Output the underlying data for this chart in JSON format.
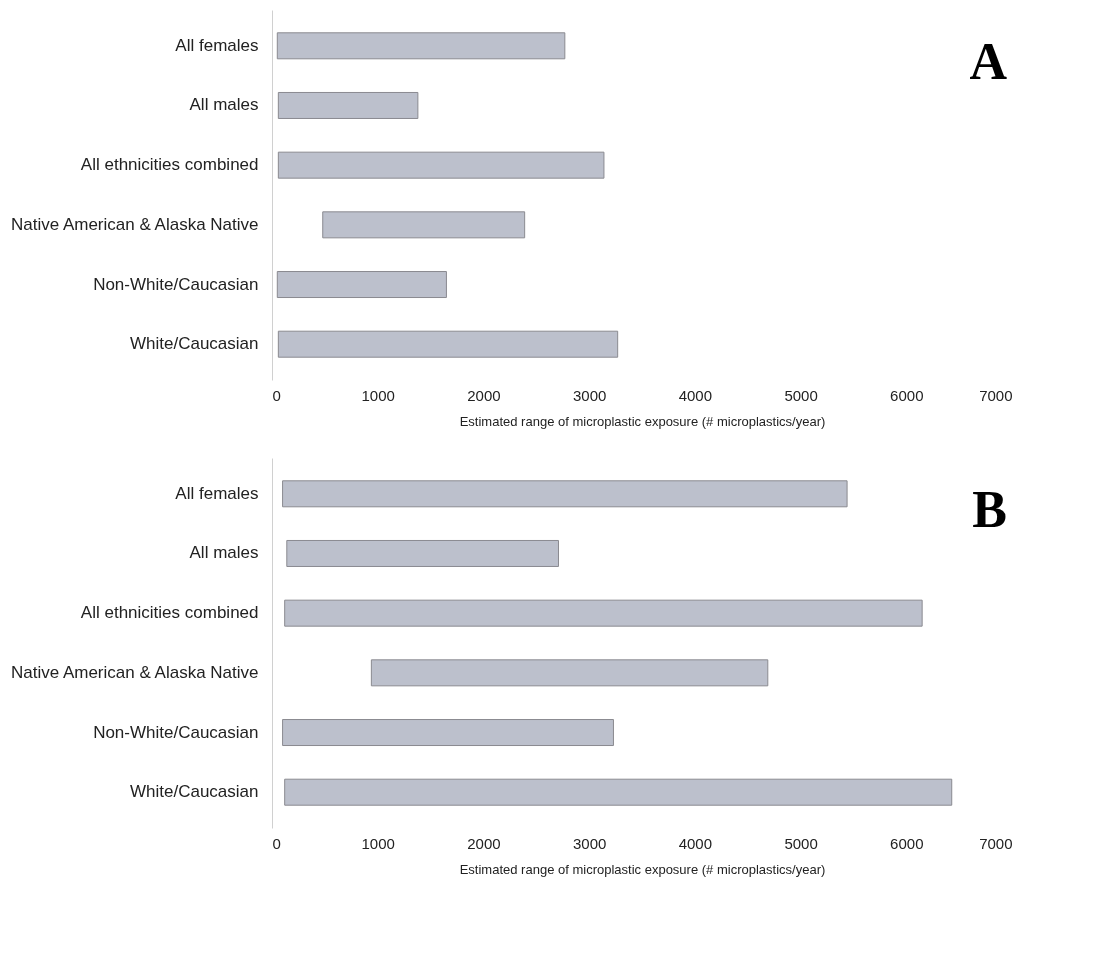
{
  "chart_data": [
    {
      "type": "bar",
      "orientation": "horizontal",
      "categories": [
        "All females",
        "All males",
        "All ethnicities combined",
        "Native American & Alaska Native",
        "Non-White/Caucasian",
        "White/Caucasian"
      ],
      "base": [
        50,
        60,
        60,
        480,
        50,
        60
      ],
      "values": [
        2720,
        1320,
        3080,
        1910,
        1600,
        3210
      ],
      "color": "#bcc0cc",
      "xlim": [
        0,
        7000
      ],
      "xticks": [
        0,
        1000,
        2000,
        3000,
        4000,
        5000,
        6000,
        7000
      ],
      "xlabel": "Estimated range of microplastic exposure (# microplastics/year)",
      "annotations": [
        "A"
      ]
    },
    {
      "type": "bar",
      "orientation": "horizontal",
      "categories": [
        "All females",
        "All males",
        "All ethnicities combined",
        "Native American & Alaska Native",
        "Non-White/Caucasian",
        "White/Caucasian"
      ],
      "base": [
        100,
        140,
        120,
        940,
        100,
        120
      ],
      "values": [
        5340,
        2570,
        6030,
        3750,
        3130,
        6310
      ],
      "color": "#bcc0cc",
      "xlim": [
        0,
        7000
      ],
      "xticks": [
        0,
        1000,
        2000,
        3000,
        4000,
        5000,
        6000,
        7000
      ],
      "xlabel": "Estimated range of microplastic exposure (# microplastics/year)",
      "annotations": [
        "B"
      ]
    }
  ]
}
